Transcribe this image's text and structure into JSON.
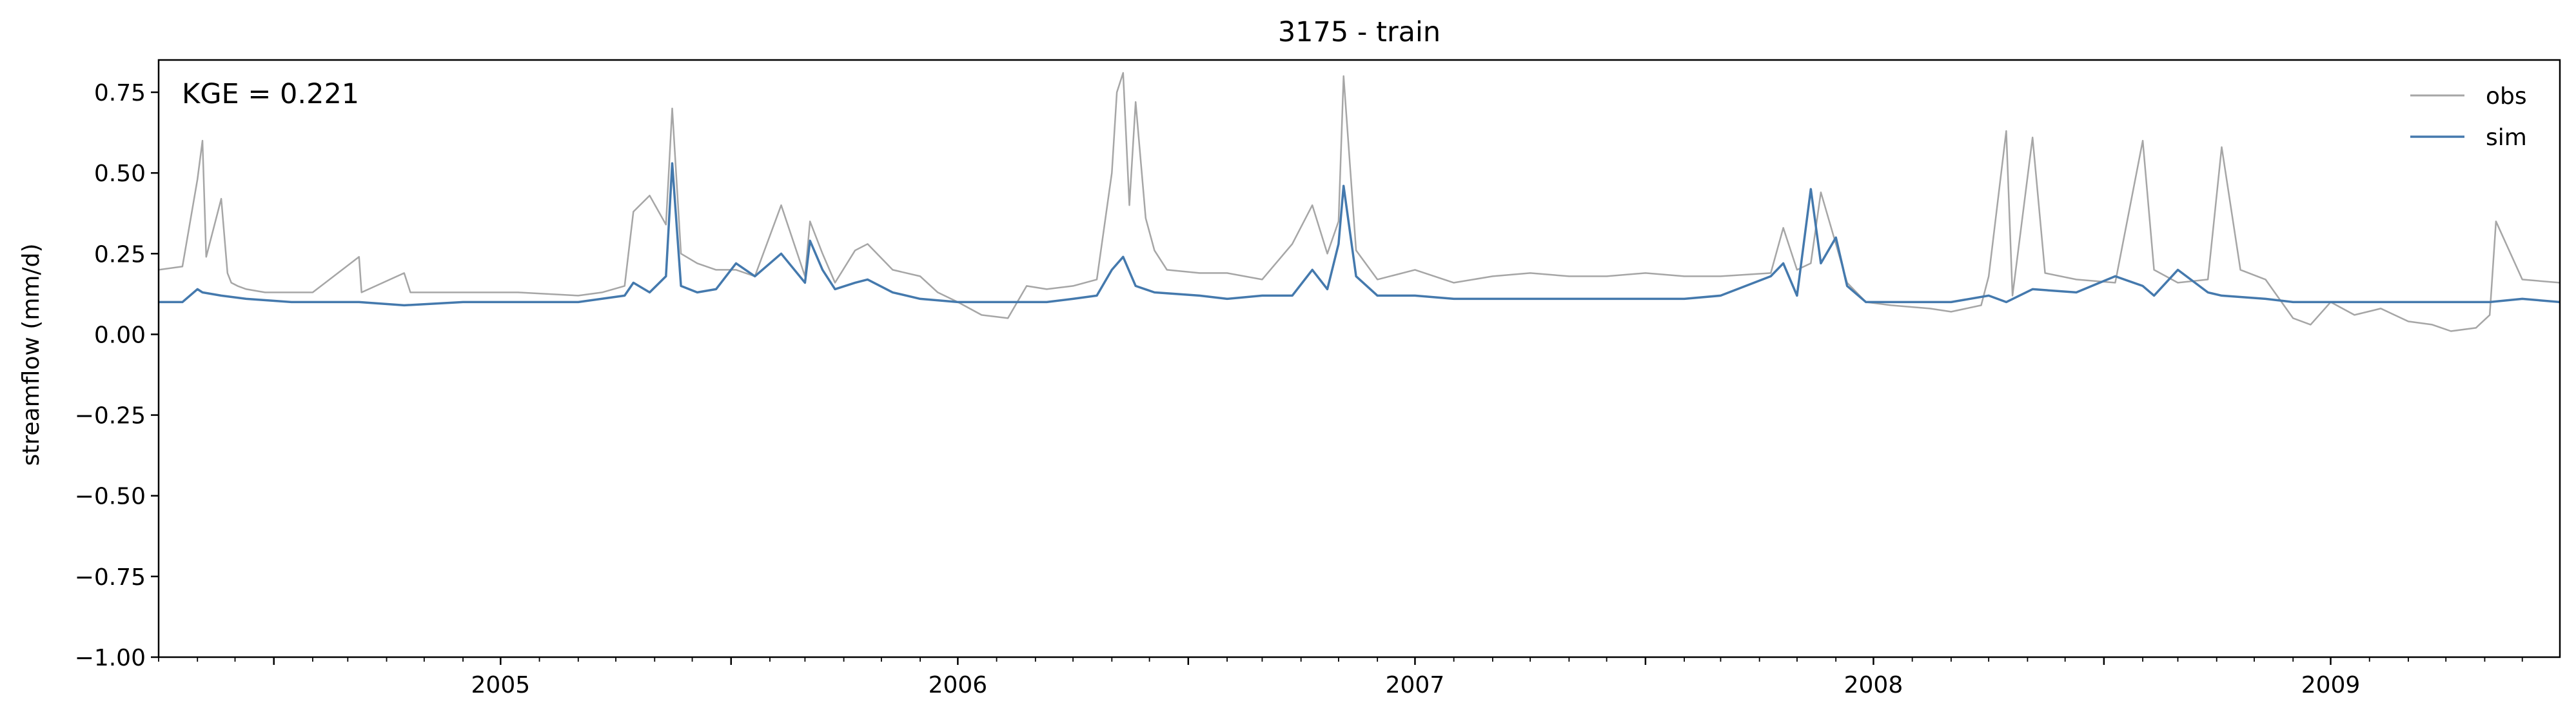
{
  "chart_data": {
    "type": "line",
    "title": "3175 - train",
    "xlabel": "",
    "ylabel": "streamflow (mm/d)",
    "annotation": "KGE = 0.221",
    "ylim": [
      -1.0,
      0.85
    ],
    "xlim": [
      "2004-10-01",
      "2009-12-31"
    ],
    "x_tick_labels": [
      "2005",
      "2006",
      "2007",
      "2008",
      "2009"
    ],
    "y_tick_labels": [
      "−1.00",
      "−0.75",
      "−0.50",
      "−0.25",
      "0.00",
      "0.25",
      "0.50",
      "0.75"
    ],
    "y_ticks": [
      -1.0,
      -0.75,
      -0.5,
      -0.25,
      0.0,
      0.25,
      0.5,
      0.75
    ],
    "grid": false,
    "legend_position": "top-right",
    "colors": {
      "obs": "#a6a6a6",
      "sim": "#4479ad"
    },
    "series": [
      {
        "name": "obs",
        "x": [
          "2004-10-01",
          "2004-10-20",
          "2004-11-01",
          "2004-11-05",
          "2004-11-08",
          "2004-11-20",
          "2004-11-25",
          "2004-11-28",
          "2004-12-03",
          "2004-12-10",
          "2004-12-25",
          "2005-01-15",
          "2005-02-01",
          "2005-03-10",
          "2005-03-12",
          "2005-04-15",
          "2005-04-20",
          "2005-06-01",
          "2005-07-15",
          "2005-09-01",
          "2005-09-20",
          "2005-10-08",
          "2005-10-15",
          "2005-10-28",
          "2005-11-10",
          "2005-11-15",
          "2005-11-22",
          "2005-12-05",
          "2005-12-20",
          "2006-01-05",
          "2006-01-20",
          "2006-02-10",
          "2006-03-01",
          "2006-03-05",
          "2006-03-15",
          "2006-03-25",
          "2006-04-10",
          "2006-04-20",
          "2006-05-10",
          "2006-06-01",
          "2006-06-15",
          "2006-07-01",
          "2006-07-20",
          "2006-08-10",
          "2006-08-25",
          "2006-09-10",
          "2006-10-01",
          "2006-10-20",
          "2006-11-01",
          "2006-11-05",
          "2006-11-10",
          "2006-11-15",
          "2006-11-20",
          "2006-11-28",
          "2006-12-05",
          "2006-12-15",
          "2007-01-10",
          "2007-02-01",
          "2007-03-01",
          "2007-03-25",
          "2007-04-10",
          "2007-04-22",
          "2007-05-01",
          "2007-05-05",
          "2007-05-15",
          "2007-06-01",
          "2007-07-01",
          "2007-08-01",
          "2007-09-01",
          "2007-10-01",
          "2007-11-01",
          "2007-12-01",
          "2008-01-01",
          "2008-02-01",
          "2008-03-01",
          "2008-04-10",
          "2008-04-20",
          "2008-05-01",
          "2008-05-12",
          "2008-05-20",
          "2008-06-01",
          "2008-06-10",
          "2008-06-25",
          "2008-07-15",
          "2008-08-15",
          "2008-09-01",
          "2008-09-25",
          "2008-10-01",
          "2008-10-15",
          "2008-10-20",
          "2008-11-05",
          "2008-11-15",
          "2008-12-10",
          "2009-01-10",
          "2009-02-01",
          "2009-02-10",
          "2009-03-01",
          "2009-03-25",
          "2009-04-05",
          "2009-04-20",
          "2009-05-10",
          "2009-06-01",
          "2009-06-15",
          "2009-07-01",
          "2009-07-20",
          "2009-08-10",
          "2009-09-01",
          "2009-09-20",
          "2009-10-05",
          "2009-10-25",
          "2009-11-05",
          "2009-11-10",
          "2009-12-01",
          "2009-12-31"
        ],
        "values": [
          0.2,
          0.21,
          0.48,
          0.6,
          0.24,
          0.42,
          0.19,
          0.16,
          0.15,
          0.14,
          0.13,
          0.13,
          0.13,
          0.24,
          0.13,
          0.19,
          0.13,
          0.13,
          0.13,
          0.12,
          0.13,
          0.15,
          0.38,
          0.43,
          0.34,
          0.7,
          0.25,
          0.22,
          0.2,
          0.2,
          0.18,
          0.4,
          0.18,
          0.35,
          0.25,
          0.16,
          0.26,
          0.28,
          0.2,
          0.18,
          0.13,
          0.1,
          0.06,
          0.05,
          0.15,
          0.14,
          0.15,
          0.17,
          0.5,
          0.75,
          0.81,
          0.4,
          0.72,
          0.36,
          0.26,
          0.2,
          0.19,
          0.19,
          0.17,
          0.28,
          0.4,
          0.25,
          0.35,
          0.8,
          0.26,
          0.17,
          0.2,
          0.16,
          0.18,
          0.19,
          0.18,
          0.18,
          0.19,
          0.18,
          0.18,
          0.19,
          0.33,
          0.2,
          0.22,
          0.44,
          0.28,
          0.16,
          0.1,
          0.09,
          0.08,
          0.07,
          0.09,
          0.18,
          0.63,
          0.12,
          0.61,
          0.19,
          0.17,
          0.16,
          0.6,
          0.2,
          0.16,
          0.17,
          0.58,
          0.2,
          0.17,
          0.05,
          0.03,
          0.1,
          0.06,
          0.08,
          0.04,
          0.03,
          0.01,
          0.02,
          0.06,
          0.35,
          0.17,
          0.16
        ]
      },
      {
        "name": "sim",
        "x": [
          "2004-10-01",
          "2004-10-20",
          "2004-11-01",
          "2004-11-05",
          "2004-11-20",
          "2004-12-10",
          "2005-01-15",
          "2005-03-10",
          "2005-04-15",
          "2005-06-01",
          "2005-07-15",
          "2005-09-01",
          "2005-10-08",
          "2005-10-15",
          "2005-10-28",
          "2005-11-10",
          "2005-11-15",
          "2005-11-22",
          "2005-12-05",
          "2005-12-20",
          "2006-01-05",
          "2006-01-20",
          "2006-02-10",
          "2006-03-01",
          "2006-03-05",
          "2006-03-15",
          "2006-03-25",
          "2006-04-10",
          "2006-04-20",
          "2006-05-10",
          "2006-06-01",
          "2006-07-01",
          "2006-08-10",
          "2006-09-10",
          "2006-10-01",
          "2006-10-20",
          "2006-11-01",
          "2006-11-10",
          "2006-11-20",
          "2006-12-05",
          "2007-01-10",
          "2007-02-01",
          "2007-03-01",
          "2007-03-25",
          "2007-04-10",
          "2007-04-22",
          "2007-05-01",
          "2007-05-05",
          "2007-05-15",
          "2007-06-01",
          "2007-07-01",
          "2007-08-01",
          "2007-09-01",
          "2007-10-01",
          "2007-11-01",
          "2007-12-01",
          "2008-01-01",
          "2008-02-01",
          "2008-03-01",
          "2008-04-10",
          "2008-04-20",
          "2008-05-01",
          "2008-05-12",
          "2008-05-20",
          "2008-06-01",
          "2008-06-10",
          "2008-06-25",
          "2008-07-15",
          "2008-08-15",
          "2008-09-01",
          "2008-10-01",
          "2008-10-15",
          "2008-11-05",
          "2008-12-10",
          "2009-01-10",
          "2009-02-01",
          "2009-02-10",
          "2009-03-01",
          "2009-03-25",
          "2009-04-05",
          "2009-05-10",
          "2009-06-01",
          "2009-07-01",
          "2009-08-10",
          "2009-09-01",
          "2009-10-05",
          "2009-11-05",
          "2009-12-01",
          "2009-12-31"
        ],
        "values": [
          0.1,
          0.1,
          0.14,
          0.13,
          0.12,
          0.11,
          0.1,
          0.1,
          0.09,
          0.1,
          0.1,
          0.1,
          0.12,
          0.16,
          0.13,
          0.18,
          0.53,
          0.15,
          0.13,
          0.14,
          0.22,
          0.18,
          0.25,
          0.16,
          0.29,
          0.2,
          0.14,
          0.16,
          0.17,
          0.13,
          0.11,
          0.1,
          0.1,
          0.1,
          0.11,
          0.12,
          0.2,
          0.24,
          0.15,
          0.13,
          0.12,
          0.11,
          0.12,
          0.12,
          0.2,
          0.14,
          0.28,
          0.46,
          0.18,
          0.12,
          0.12,
          0.11,
          0.11,
          0.11,
          0.11,
          0.11,
          0.11,
          0.11,
          0.12,
          0.18,
          0.22,
          0.12,
          0.45,
          0.22,
          0.3,
          0.15,
          0.1,
          0.1,
          0.1,
          0.1,
          0.12,
          0.1,
          0.14,
          0.13,
          0.18,
          0.15,
          0.12,
          0.2,
          0.13,
          0.12,
          0.11,
          0.1,
          0.1,
          0.1,
          0.1,
          0.1,
          0.1,
          0.11,
          0.1
        ]
      }
    ]
  }
}
